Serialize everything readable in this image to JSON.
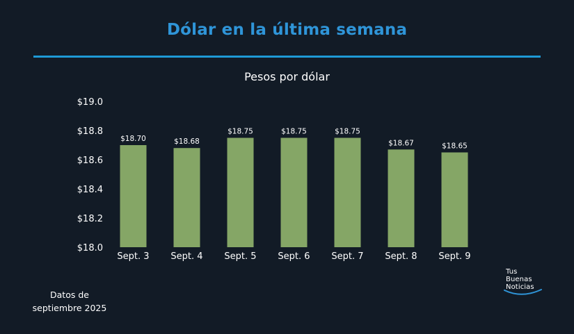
{
  "title": "Dólar en la última semana",
  "footnote": {
    "line1": "Datos de",
    "line2": "septiembre 2025"
  },
  "logo": {
    "line1": "Tus",
    "line2": "Buenas",
    "line3": "Noticias"
  },
  "colors": {
    "background": "#121b26",
    "title": "#2f95d8",
    "rule": "#1e9ad6",
    "bar": "#85a666",
    "text": "#ffffff"
  },
  "chart_data": {
    "type": "bar",
    "title": "Pesos por dólar",
    "xlabel": "",
    "ylabel": "",
    "categories": [
      "Sept. 3",
      "Sept. 4",
      "Sept. 5",
      "Sept. 6",
      "Sept. 7",
      "Sept. 8",
      "Sept. 9"
    ],
    "values": [
      18.7,
      18.68,
      18.75,
      18.75,
      18.75,
      18.67,
      18.65
    ],
    "data_labels": [
      "$18.70",
      "$18.68",
      "$18.75",
      "$18.75",
      "$18.75",
      "$18.67",
      "$18.65"
    ],
    "ylim": [
      18.0,
      19.0
    ],
    "yticks": [
      18.0,
      18.2,
      18.4,
      18.6,
      18.8,
      19.0
    ],
    "ytick_labels": [
      "$18.0",
      "$18.2",
      "$18.4",
      "$18.6",
      "$18.8",
      "$19.0"
    ],
    "grid": false,
    "legend": "none"
  }
}
